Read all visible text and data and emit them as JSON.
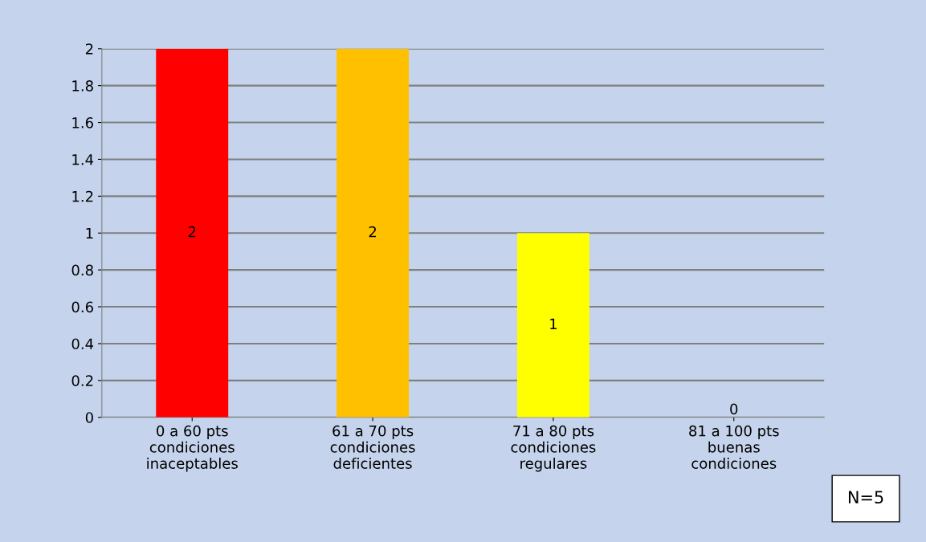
{
  "chart_data": {
    "type": "bar",
    "categories": [
      "0 a 60 pts\ncondiciones\ninaceptables",
      "61 a 70 pts\ncondiciones\ndeficientes",
      "71 a 80 pts\ncondiciones\nregulares",
      "81 a 100 pts\nbuenas\ncondiciones"
    ],
    "values": [
      2,
      2,
      1,
      0
    ],
    "colors": [
      "#ff0000",
      "#ffc000",
      "#ffff00",
      "#76a33e"
    ],
    "ylim": [
      0,
      2
    ],
    "yticks": [
      0,
      0.2,
      0.4,
      0.6,
      0.8,
      1,
      1.2,
      1.4,
      1.6,
      1.8,
      2
    ],
    "grid": "y",
    "data_labels": true,
    "annotations": [
      "N=5"
    ]
  }
}
